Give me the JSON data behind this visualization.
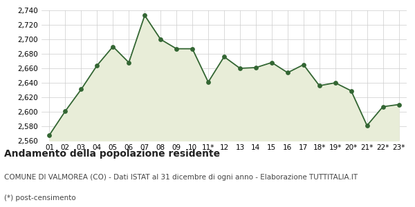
{
  "x_labels": [
    "01",
    "02",
    "03",
    "04",
    "05",
    "06",
    "07",
    "08",
    "09",
    "10",
    "11*",
    "12",
    "13",
    "14",
    "15",
    "16",
    "17",
    "18*",
    "19*",
    "20*",
    "21*",
    "22*",
    "23*"
  ],
  "y_values": [
    2568,
    2601,
    2631,
    2664,
    2690,
    2668,
    2733,
    2700,
    2687,
    2687,
    2641,
    2676,
    2660,
    2661,
    2668,
    2654,
    2665,
    2636,
    2640,
    2629,
    2581,
    2607,
    2610
  ],
  "ylim": [
    2560,
    2740
  ],
  "yticks": [
    2560,
    2580,
    2600,
    2620,
    2640,
    2660,
    2680,
    2700,
    2720,
    2740
  ],
  "line_color": "#336633",
  "fill_color": "#e8edd8",
  "marker_color": "#336633",
  "bg_color": "#ffffff",
  "grid_color": "#cccccc",
  "title": "Andamento della popolazione residente",
  "subtitle": "COMUNE DI VALMOREA (CO) - Dati ISTAT al 31 dicembre di ogni anno - Elaborazione TUTTITALIA.IT",
  "footnote": "(*) post-censimento",
  "title_fontsize": 10,
  "subtitle_fontsize": 7.5,
  "footnote_fontsize": 7.5,
  "tick_fontsize": 7.5
}
